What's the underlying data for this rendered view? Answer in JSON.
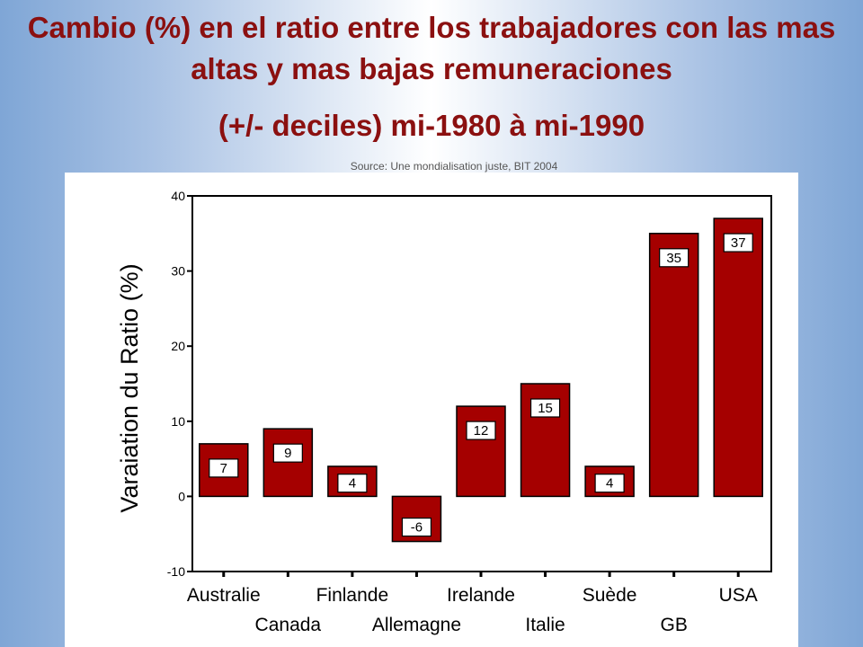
{
  "title_line1": "Cambio (%) en el ratio entre los trabajadores con las mas altas y mas bajas remuneraciones",
  "title_line2": "(+/- deciles)  mi-1980 à mi-1990",
  "source": "Source: Une mondialisation juste, BIT  2004",
  "colors": {
    "title": "#8b1010",
    "bar": "#a50000",
    "background_edge": "#7fa6d6"
  },
  "chart_data": {
    "type": "bar",
    "ylabel": "Varaiation du Ratio (%)",
    "xlabel": "",
    "ylim": [
      -10,
      40
    ],
    "yticks": [
      -10,
      0,
      10,
      20,
      30,
      40
    ],
    "grid": false,
    "categories": [
      "Australie",
      "Canada",
      "Finlande",
      "Allemagne",
      "Irelande",
      "Italie",
      "Suède",
      "GB",
      "USA"
    ],
    "values": [
      7,
      9,
      4,
      -6,
      12,
      15,
      4,
      35,
      37
    ],
    "data_labels": [
      "7",
      "9",
      "4",
      "-6",
      "12",
      "15",
      "4",
      "35",
      "37"
    ]
  }
}
